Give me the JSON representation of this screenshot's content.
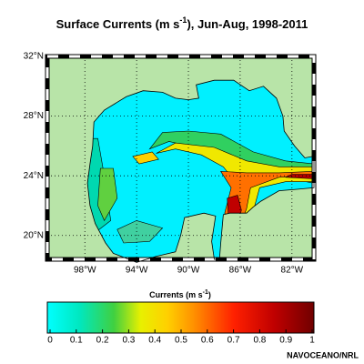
{
  "title": {
    "main": "Surface Currents (m s",
    "sup": "-1",
    "rest": "), Jun-Aug, 1998-2011"
  },
  "map": {
    "xlim": [
      -100.9,
      -80.3
    ],
    "ylim": [
      18.4,
      32
    ],
    "xticks": [
      {
        "value": -98,
        "label": "98°W"
      },
      {
        "value": -94,
        "label": "94°W"
      },
      {
        "value": -90,
        "label": "90°W"
      },
      {
        "value": -86,
        "label": "86°W"
      },
      {
        "value": -82,
        "label": "82°W"
      }
    ],
    "yticks": [
      {
        "value": 32,
        "label": "32°N"
      },
      {
        "value": 28,
        "label": "28°N"
      },
      {
        "value": 24,
        "label": "24°N"
      },
      {
        "value": 20,
        "label": "20°N"
      }
    ]
  },
  "colorbar": {
    "label": {
      "main": "Currents (m s",
      "sup": "-1",
      "rest": ")"
    },
    "lim": [
      0,
      1
    ],
    "ticks": [
      0,
      0.1,
      0.2,
      0.3,
      0.4,
      0.5,
      0.6,
      0.7,
      0.8,
      0.9,
      1
    ]
  },
  "credit": "NAVOCEANO/NRL"
}
